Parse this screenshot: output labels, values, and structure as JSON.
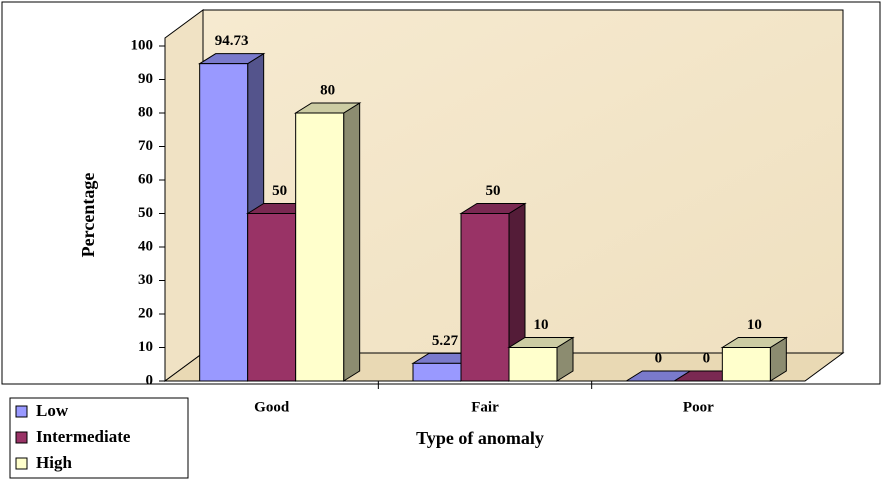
{
  "chart_data": {
    "type": "bar3d",
    "x_label": "Type of anomaly",
    "y_label": "Percentage",
    "categories": [
      "Good",
      "Fair",
      "Poor"
    ],
    "series": [
      {
        "name": "Low",
        "color": "#9999ff",
        "values": [
          94.73,
          5.27,
          0
        ]
      },
      {
        "name": "Intermediate",
        "color": "#993366",
        "values": [
          50,
          50,
          0
        ]
      },
      {
        "name": "High",
        "color": "#ffffcc",
        "values": [
          80,
          10,
          10
        ]
      }
    ],
    "ylim": [
      0,
      100
    ],
    "yticks": [
      0,
      10,
      20,
      30,
      40,
      50,
      60,
      70,
      80,
      90,
      100
    ],
    "grid": false
  }
}
